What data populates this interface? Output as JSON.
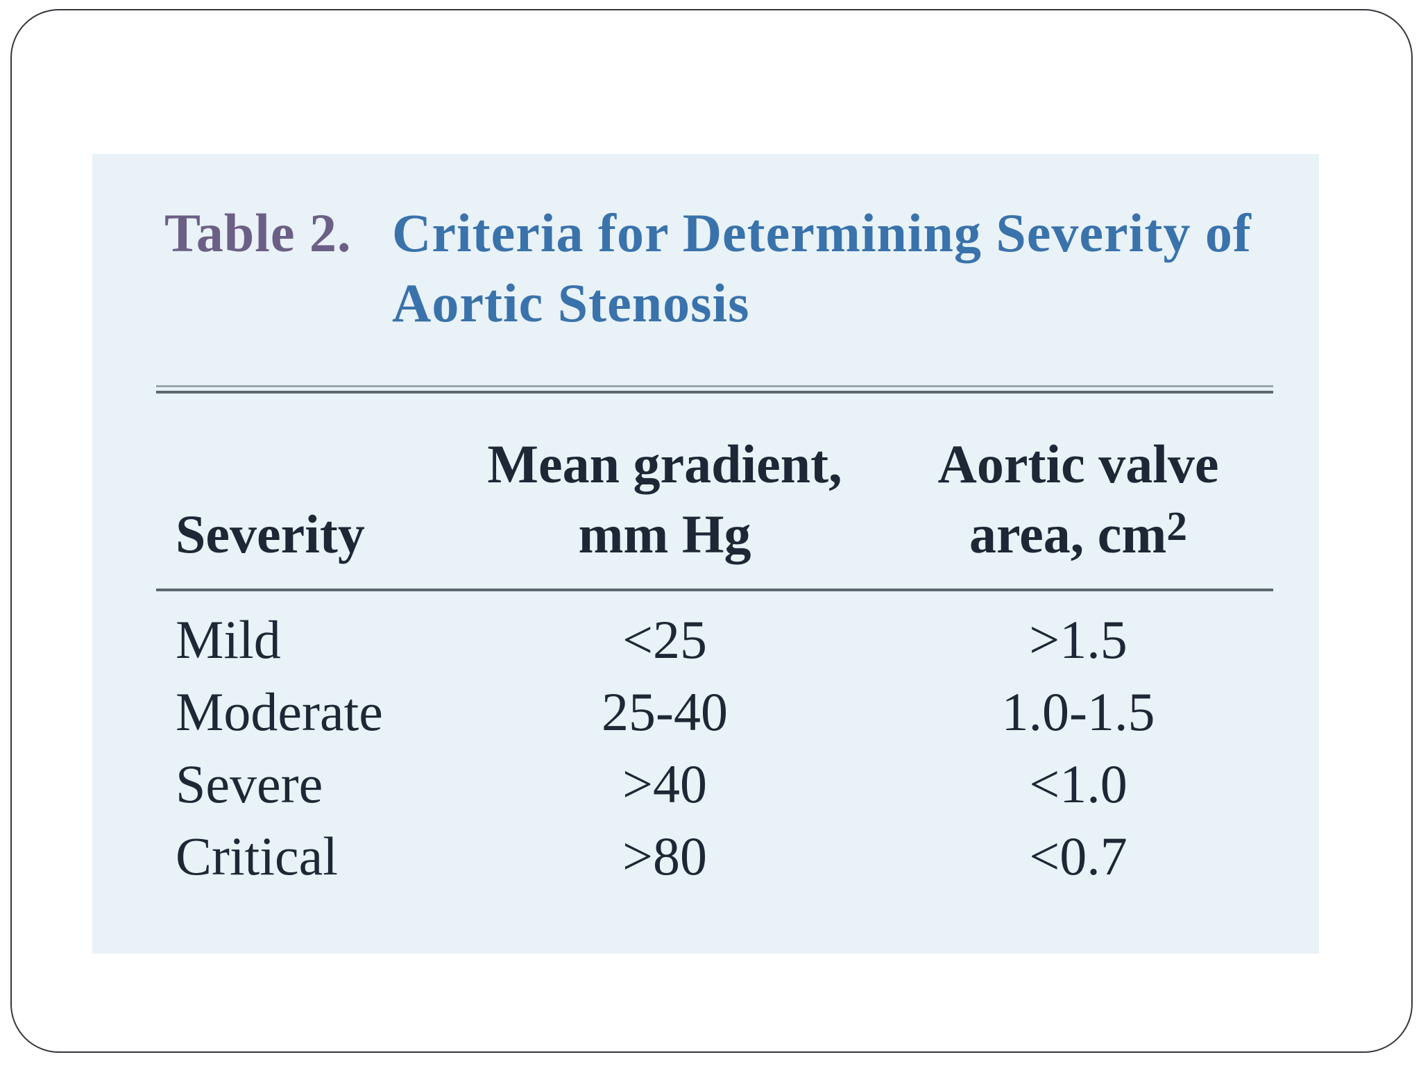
{
  "page": {
    "background": "#ffffff",
    "slide_border_color": "#33373c"
  },
  "panel": {
    "background": "#e8f2f7",
    "rule_color_dark": "#5c666e",
    "rule_color_light": "#98a2aa"
  },
  "table": {
    "label": "Table 2.",
    "label_color": "#6c5f85",
    "title_line1": "Criteria for Determining Severity of",
    "title_line2": "Aortic Stenosis",
    "title_color": "#3a72ab",
    "text_color": "#1e2735",
    "header": {
      "col1": "Severity",
      "col2_line1": "Mean gradient,",
      "col2_line2": "mm Hg",
      "col3_line1": "Aortic valve",
      "col3_line2_text": "area, cm",
      "col3_line2_sup": "2"
    },
    "rows": [
      {
        "severity": "Mild",
        "gradient": "<25",
        "area": ">1.5"
      },
      {
        "severity": "Moderate",
        "gradient": "25-40",
        "area": "1.0-1.5"
      },
      {
        "severity": "Severe",
        "gradient": ">40",
        "area": "<1.0"
      },
      {
        "severity": "Critical",
        "gradient": ">80",
        "area": "<0.7"
      }
    ]
  },
  "chart_data": {
    "type": "table",
    "title": "Table 2. Criteria for Determining Severity of Aortic Stenosis",
    "columns": [
      "Severity",
      "Mean gradient, mm Hg",
      "Aortic valve area, cm2"
    ],
    "rows": [
      [
        "Mild",
        "<25",
        ">1.5"
      ],
      [
        "Moderate",
        "25-40",
        "1.0-1.5"
      ],
      [
        "Severe",
        ">40",
        "<1.0"
      ],
      [
        "Critical",
        ">80",
        "<0.7"
      ]
    ]
  }
}
